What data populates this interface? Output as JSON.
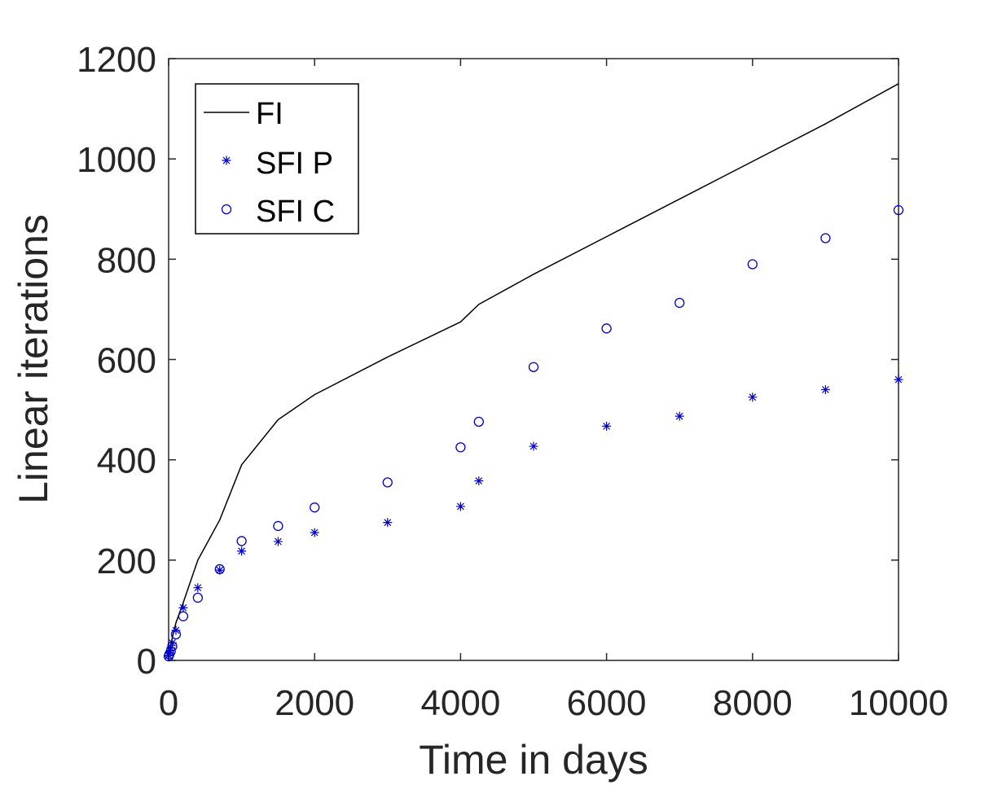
{
  "chart_data": {
    "type": "line",
    "xlabel": "Time in days",
    "ylabel": "Linear iterations",
    "xlim": [
      0,
      10000
    ],
    "ylim": [
      0,
      1200
    ],
    "xticks": [
      0,
      2000,
      4000,
      6000,
      8000,
      10000
    ],
    "yticks": [
      0,
      200,
      400,
      600,
      800,
      1000,
      1200
    ],
    "xtick_labels": [
      "0",
      "2000",
      "4000",
      "6000",
      "8000",
      "10000"
    ],
    "ytick_labels": [
      "0",
      "200",
      "400",
      "600",
      "800",
      "1000",
      "1200"
    ],
    "grid": false,
    "legend_position": "top-left",
    "series": [
      {
        "name": "FI",
        "style": "line",
        "color": "#000000",
        "x": [
          0,
          10,
          30,
          50,
          100,
          200,
          400,
          700,
          1000,
          1500,
          2000,
          3000,
          4000,
          4250,
          5000,
          6000,
          7000,
          8000,
          9000,
          10000
        ],
        "y": [
          8,
          15,
          28,
          45,
          75,
          115,
          200,
          280,
          390,
          480,
          530,
          605,
          675,
          710,
          770,
          845,
          920,
          995,
          1070,
          1150
        ]
      },
      {
        "name": "SFI P",
        "style": "star",
        "color": "#0000cc",
        "x": [
          0,
          10,
          30,
          50,
          100,
          200,
          400,
          700,
          1000,
          1500,
          2000,
          3000,
          4000,
          4250,
          5000,
          6000,
          7000,
          8000,
          9000,
          10000
        ],
        "y": [
          10,
          15,
          25,
          35,
          60,
          105,
          145,
          180,
          218,
          237,
          255,
          275,
          307,
          358,
          427,
          467,
          487,
          525,
          540,
          560
        ]
      },
      {
        "name": "SFI C",
        "style": "circle",
        "color": "#0000cc",
        "x": [
          0,
          10,
          30,
          50,
          100,
          200,
          400,
          700,
          1000,
          1500,
          2000,
          3000,
          4000,
          4250,
          5000,
          6000,
          7000,
          8000,
          9000,
          10000
        ],
        "y": [
          8,
          12,
          18,
          28,
          52,
          88,
          125,
          182,
          238,
          268,
          305,
          355,
          425,
          476,
          585,
          662,
          713,
          790,
          842,
          898
        ]
      }
    ]
  }
}
